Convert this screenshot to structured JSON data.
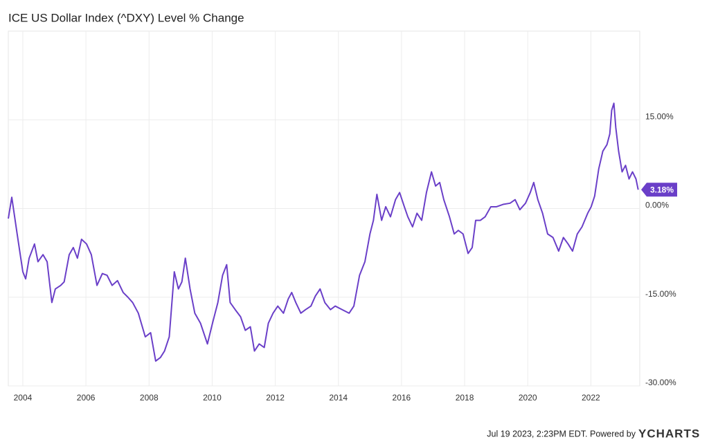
{
  "chart_data": {
    "type": "line",
    "title": "ICE US Dollar Index (^DXY) Level % Change",
    "footer": "Jul 19 2023, 2:23PM EDT. Powered by",
    "brand": "YCHARTS",
    "xlim": [
      2003.54,
      2023.55
    ],
    "xticks": [
      2004,
      2006,
      2008,
      2010,
      2012,
      2014,
      2016,
      2018,
      2020,
      2022
    ],
    "ylim": [
      -30,
      30
    ],
    "yticks": [
      {
        "value": -30,
        "label": "-30.00%"
      },
      {
        "value": -15,
        "label": "-15.00%"
      },
      {
        "value": 0,
        "label": "0.00%"
      },
      {
        "value": 15,
        "label": "15.00%"
      }
    ],
    "grid": true,
    "x": [
      2003.54,
      2003.65,
      2003.82,
      2004.0,
      2004.09,
      2004.2,
      2004.37,
      2004.48,
      2004.64,
      2004.77,
      2004.92,
      2005.03,
      2005.2,
      2005.31,
      2005.47,
      2005.6,
      2005.73,
      2005.86,
      2006.02,
      2006.17,
      2006.35,
      2006.52,
      2006.67,
      2006.83,
      2007.0,
      2007.18,
      2007.33,
      2007.48,
      2007.66,
      2007.88,
      2008.05,
      2008.21,
      2008.36,
      2008.49,
      2008.64,
      2008.8,
      2008.93,
      2009.04,
      2009.15,
      2009.3,
      2009.45,
      2009.63,
      2009.85,
      2010.02,
      2010.18,
      2010.33,
      2010.46,
      2010.57,
      2010.73,
      2010.9,
      2011.05,
      2011.21,
      2011.34,
      2011.49,
      2011.65,
      2011.78,
      2011.93,
      2012.08,
      2012.26,
      2012.41,
      2012.52,
      2012.65,
      2012.81,
      2012.96,
      2013.13,
      2013.27,
      2013.42,
      2013.57,
      2013.75,
      2013.9,
      2014.12,
      2014.34,
      2014.49,
      2014.67,
      2014.84,
      2015.0,
      2015.11,
      2015.22,
      2015.37,
      2015.5,
      2015.65,
      2015.81,
      2015.94,
      2016.09,
      2016.2,
      2016.35,
      2016.49,
      2016.64,
      2016.79,
      2016.95,
      2017.08,
      2017.21,
      2017.34,
      2017.52,
      2017.67,
      2017.8,
      2017.95,
      2018.11,
      2018.24,
      2018.35,
      2018.5,
      2018.65,
      2018.83,
      2019.01,
      2019.22,
      2019.44,
      2019.6,
      2019.75,
      2019.93,
      2020.08,
      2020.19,
      2020.32,
      2020.47,
      2020.63,
      2020.8,
      2020.98,
      2021.13,
      2021.28,
      2021.42,
      2021.57,
      2021.72,
      2021.9,
      2022.01,
      2022.12,
      2022.25,
      2022.38,
      2022.51,
      2022.6,
      2022.66,
      2022.73,
      2022.79,
      2022.88,
      2022.99,
      2023.1,
      2023.21,
      2023.32,
      2023.43,
      2023.5
    ],
    "series": [
      {
        "name": "ICE US Dollar Index (^DXY) Level % Change",
        "color": "#6a3fc8",
        "values": [
          -1.7,
          1.9,
          -4.3,
          -10.7,
          -11.9,
          -8.4,
          -6.0,
          -9.0,
          -7.8,
          -9.0,
          -15.9,
          -13.6,
          -13.0,
          -12.4,
          -7.8,
          -6.6,
          -8.4,
          -5.2,
          -6.0,
          -7.8,
          -13.0,
          -11.0,
          -11.3,
          -13.0,
          -12.2,
          -14.2,
          -15.0,
          -15.9,
          -17.7,
          -21.7,
          -21.0,
          -25.8,
          -25.2,
          -24.1,
          -21.7,
          -10.7,
          -13.6,
          -12.4,
          -8.4,
          -13.6,
          -17.7,
          -19.4,
          -22.9,
          -19.2,
          -15.9,
          -11.3,
          -9.5,
          -15.9,
          -17.1,
          -18.3,
          -20.6,
          -20.0,
          -24.1,
          -22.9,
          -23.5,
          -19.4,
          -17.7,
          -16.5,
          -17.7,
          -15.3,
          -14.2,
          -15.9,
          -17.7,
          -17.1,
          -16.5,
          -14.8,
          -13.6,
          -15.9,
          -17.1,
          -16.5,
          -17.1,
          -17.7,
          -16.5,
          -11.3,
          -9.0,
          -4.3,
          -2.0,
          2.4,
          -2.0,
          0.3,
          -1.4,
          1.5,
          2.7,
          0.3,
          -1.4,
          -3.1,
          -0.8,
          -2.0,
          2.7,
          6.2,
          3.8,
          4.4,
          1.5,
          -1.4,
          -4.3,
          -3.7,
          -4.3,
          -7.6,
          -6.6,
          -2.0,
          -2.0,
          -1.4,
          0.3,
          0.3,
          0.7,
          0.9,
          1.5,
          -0.2,
          0.9,
          2.7,
          4.4,
          1.5,
          -0.8,
          -4.3,
          -4.9,
          -7.2,
          -4.9,
          -6.0,
          -7.2,
          -4.3,
          -3.1,
          -0.8,
          0.3,
          2.1,
          6.7,
          9.7,
          10.8,
          12.6,
          16.6,
          17.8,
          13.7,
          9.7,
          6.2,
          7.3,
          5.0,
          6.2,
          5.0,
          3.18
        ],
        "end_label": {
          "value": 3.18,
          "label": "3.18%"
        }
      }
    ]
  }
}
